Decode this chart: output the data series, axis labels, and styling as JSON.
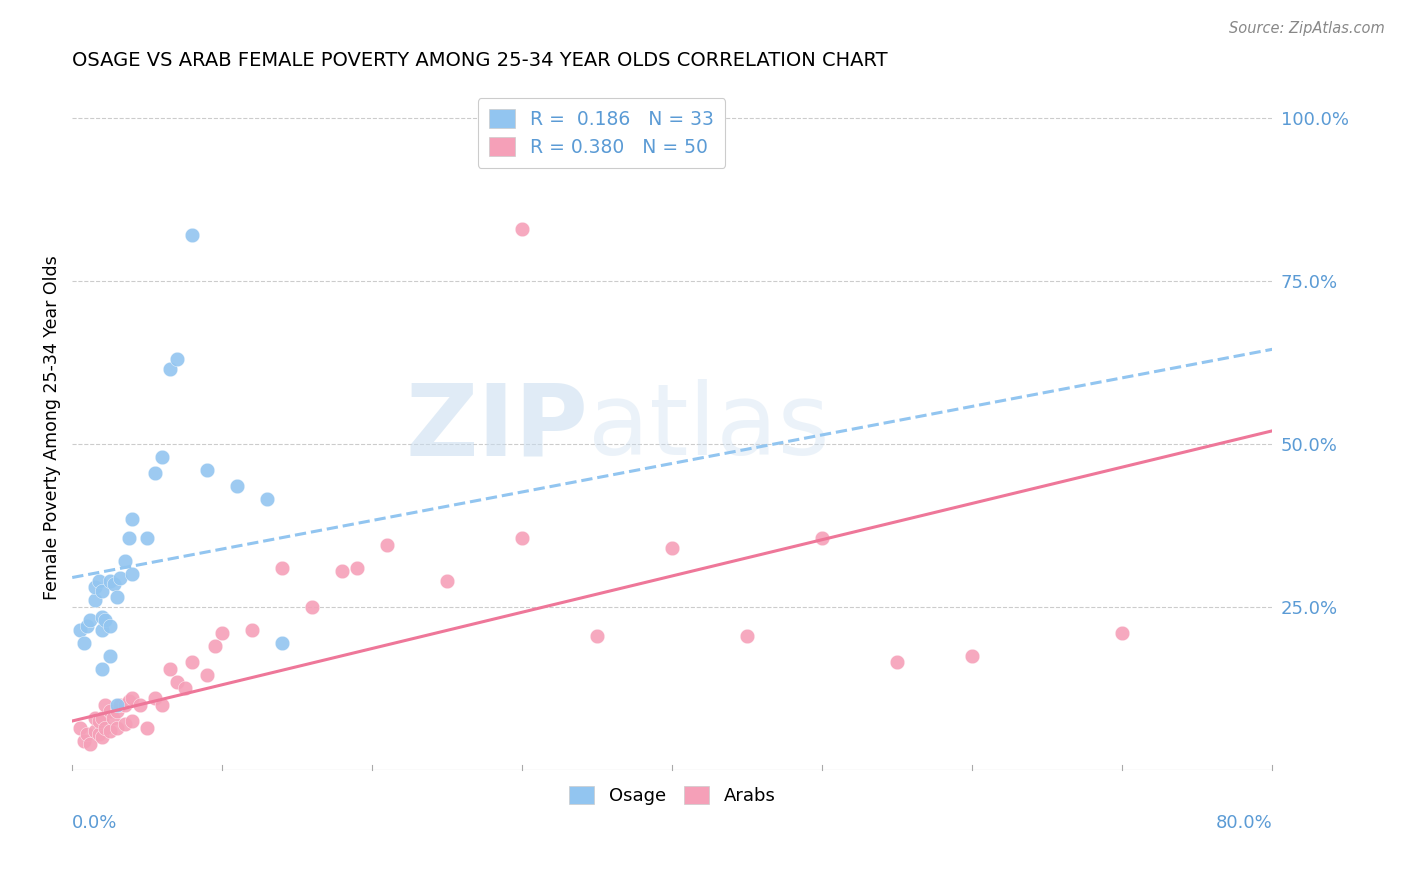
{
  "title": "OSAGE VS ARAB FEMALE POVERTY AMONG 25-34 YEAR OLDS CORRELATION CHART",
  "source": "Source: ZipAtlas.com",
  "ylabel": "Female Poverty Among 25-34 Year Olds",
  "xlim": [
    0.0,
    0.8
  ],
  "ylim": [
    0.0,
    1.05
  ],
  "osage_R": "0.186",
  "osage_N": "33",
  "arab_R": "0.380",
  "arab_N": "50",
  "osage_color": "#92C5F0",
  "arab_color": "#F5A0B8",
  "osage_line_color": "#92C5F0",
  "arab_line_color": "#EE7799",
  "legend_label_osage": "Osage",
  "legend_label_arab": "Arabs",
  "watermark_zip": "ZIP",
  "watermark_atlas": "atlas",
  "ytick_values": [
    0.25,
    0.5,
    0.75,
    1.0
  ],
  "ytick_labels": [
    "25.0%",
    "50.0%",
    "75.0%",
    "100.0%"
  ],
  "osage_line_x0": 0.0,
  "osage_line_y0": 0.295,
  "osage_line_x1": 0.8,
  "osage_line_y1": 0.645,
  "arab_line_x0": 0.0,
  "arab_line_y0": 0.075,
  "arab_line_x1": 0.8,
  "arab_line_y1": 0.52,
  "osage_x": [
    0.005,
    0.008,
    0.01,
    0.012,
    0.015,
    0.015,
    0.018,
    0.02,
    0.02,
    0.02,
    0.022,
    0.025,
    0.025,
    0.028,
    0.03,
    0.032,
    0.035,
    0.038,
    0.04,
    0.04,
    0.05,
    0.055,
    0.06,
    0.065,
    0.07,
    0.08,
    0.09,
    0.11,
    0.13,
    0.14,
    0.02,
    0.025,
    0.03
  ],
  "osage_y": [
    0.215,
    0.195,
    0.22,
    0.23,
    0.26,
    0.28,
    0.29,
    0.215,
    0.235,
    0.275,
    0.23,
    0.22,
    0.29,
    0.285,
    0.265,
    0.295,
    0.32,
    0.355,
    0.3,
    0.385,
    0.355,
    0.455,
    0.48,
    0.615,
    0.63,
    0.82,
    0.46,
    0.435,
    0.415,
    0.195,
    0.155,
    0.175,
    0.1
  ],
  "arab_x": [
    0.005,
    0.008,
    0.01,
    0.012,
    0.015,
    0.015,
    0.018,
    0.018,
    0.02,
    0.02,
    0.022,
    0.022,
    0.025,
    0.025,
    0.027,
    0.03,
    0.03,
    0.032,
    0.035,
    0.035,
    0.038,
    0.04,
    0.04,
    0.045,
    0.05,
    0.055,
    0.06,
    0.065,
    0.07,
    0.075,
    0.08,
    0.09,
    0.095,
    0.1,
    0.12,
    0.14,
    0.16,
    0.18,
    0.19,
    0.21,
    0.25,
    0.3,
    0.35,
    0.4,
    0.45,
    0.5,
    0.55,
    0.6,
    0.7,
    0.3
  ],
  "arab_y": [
    0.065,
    0.045,
    0.055,
    0.04,
    0.06,
    0.08,
    0.055,
    0.075,
    0.05,
    0.08,
    0.065,
    0.1,
    0.06,
    0.09,
    0.08,
    0.065,
    0.09,
    0.1,
    0.07,
    0.1,
    0.105,
    0.075,
    0.11,
    0.1,
    0.065,
    0.11,
    0.1,
    0.155,
    0.135,
    0.125,
    0.165,
    0.145,
    0.19,
    0.21,
    0.215,
    0.31,
    0.25,
    0.305,
    0.31,
    0.345,
    0.29,
    0.355,
    0.205,
    0.34,
    0.205,
    0.355,
    0.165,
    0.175,
    0.21,
    0.83
  ]
}
